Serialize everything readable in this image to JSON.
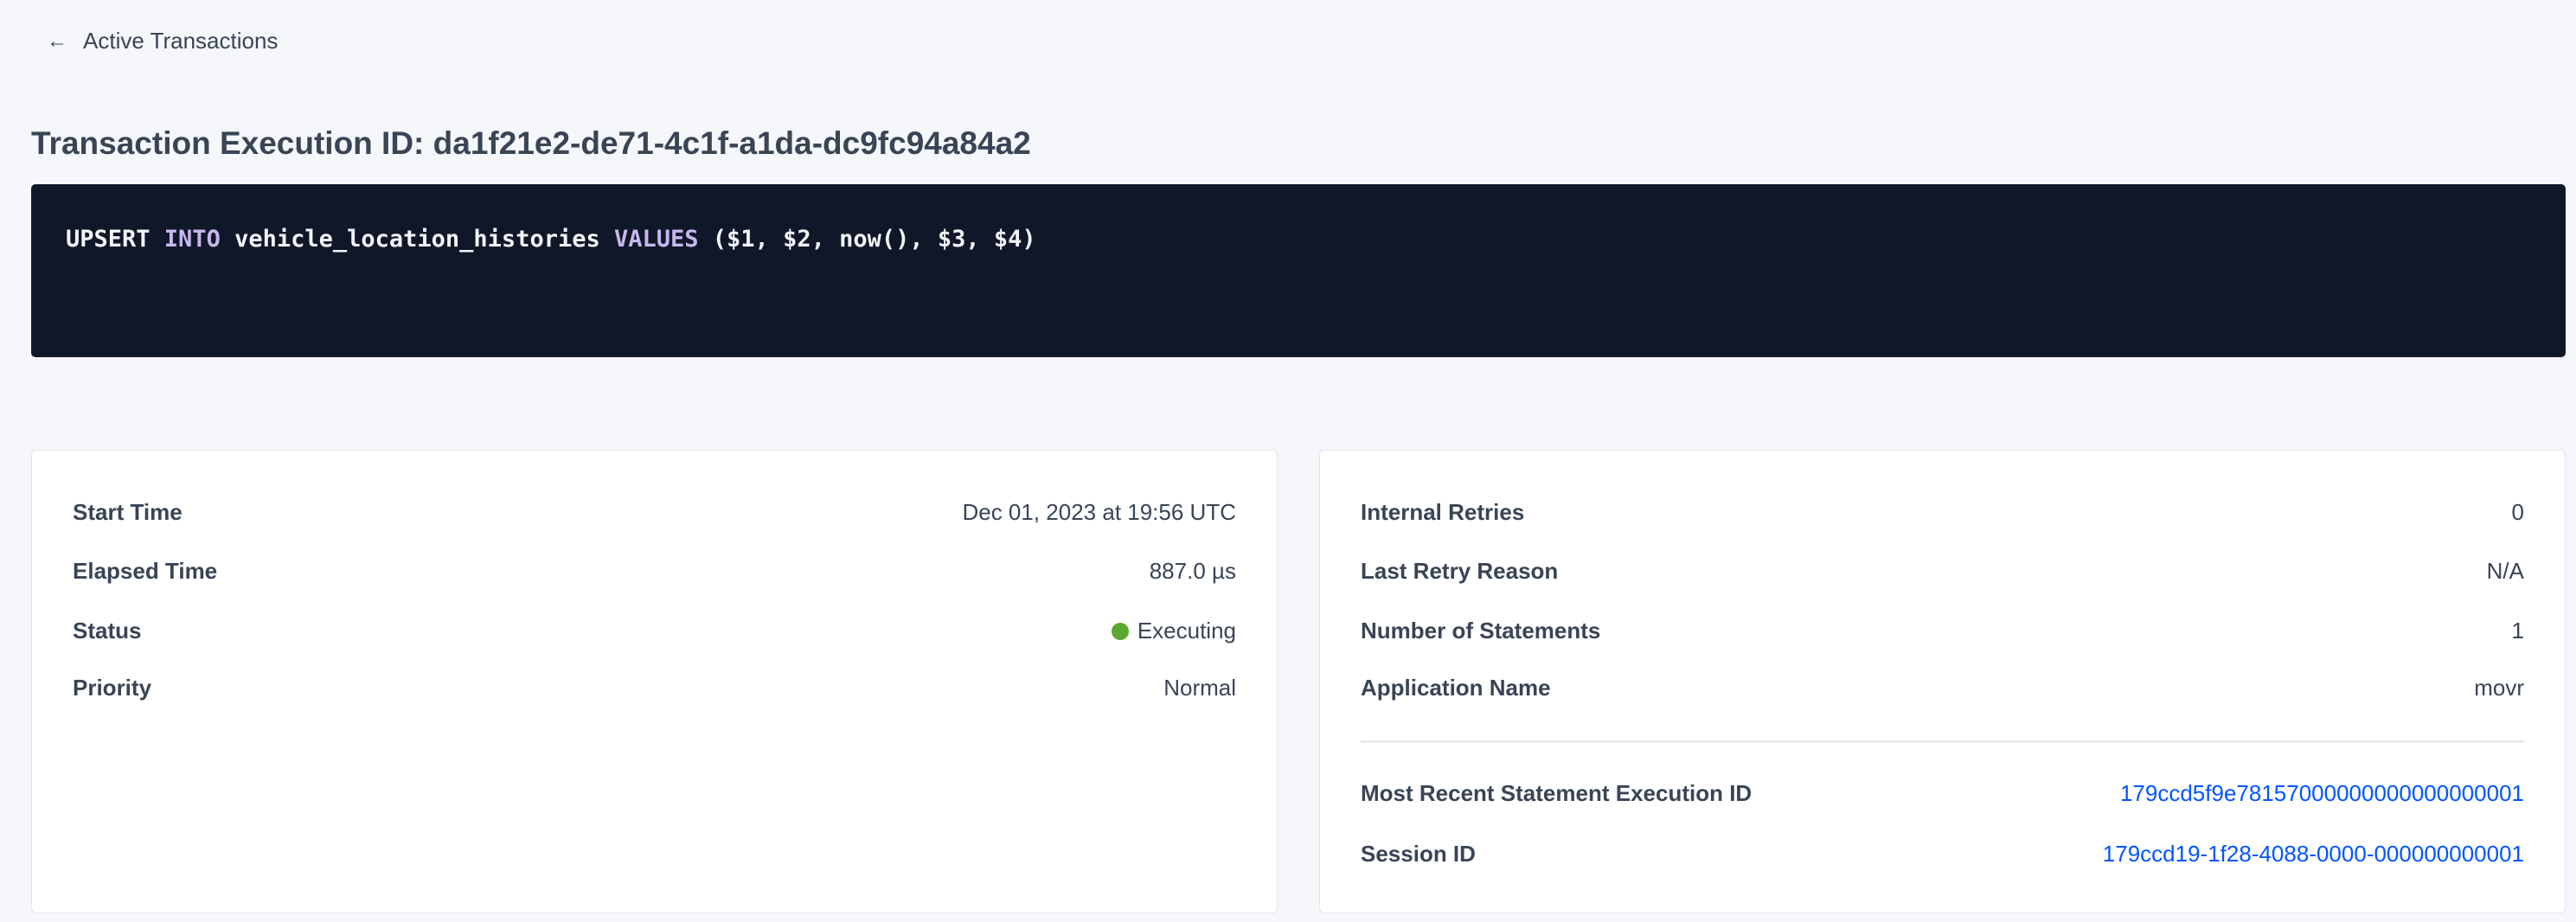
{
  "back_link": {
    "label": "Active Transactions",
    "icon": "arrow-left-icon"
  },
  "title": "Transaction Execution ID: da1f21e2-de71-4c1f-a1da-dc9fc94a84a2",
  "sql": {
    "t1": "UPSERT ",
    "k1": "INTO",
    "t2": " vehicle_location_histories ",
    "k2": "VALUES",
    "t3": " ($1, $2, now(), $3, $4)"
  },
  "left_card": {
    "rows": [
      {
        "label": "Start Time",
        "value": "Dec 01, 2023 at 19:56 UTC"
      },
      {
        "label": "Elapsed Time",
        "value": "887.0 µs"
      },
      {
        "label": "Status",
        "value": "Executing",
        "status_color": "#5aa830"
      },
      {
        "label": "Priority",
        "value": "Normal"
      }
    ]
  },
  "right_card": {
    "rows": [
      {
        "label": "Internal Retries",
        "value": "0"
      },
      {
        "label": "Last Retry Reason",
        "value": "N/A"
      },
      {
        "label": "Number of Statements",
        "value": "1"
      },
      {
        "label": "Application Name",
        "value": "movr"
      }
    ],
    "links": [
      {
        "label": "Most Recent Statement Execution ID",
        "value": "179ccd5f9e78157000000000000000001"
      },
      {
        "label": "Session ID",
        "value": "179ccd19-1f28-4088-0000-000000000001"
      }
    ]
  },
  "colors": {
    "link": "#0055ff",
    "code_bg": "#101728",
    "keyword": "#c6b7ef"
  }
}
